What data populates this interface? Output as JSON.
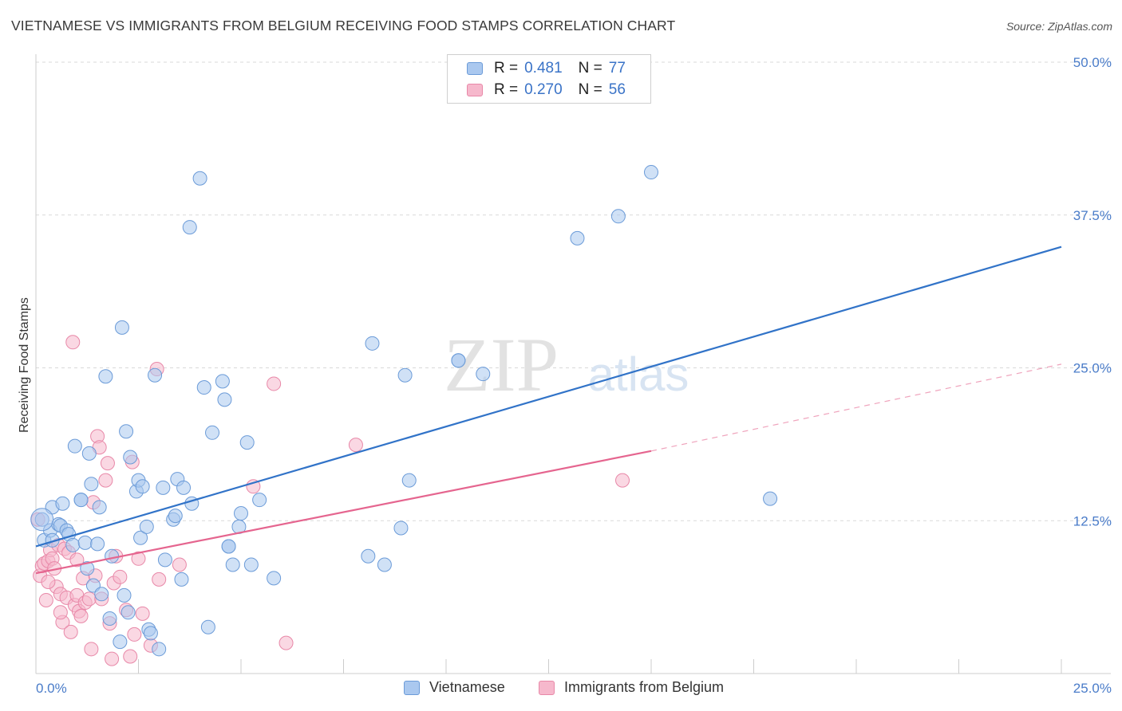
{
  "title": "VIETNAMESE VS IMMIGRANTS FROM BELGIUM RECEIVING FOOD STAMPS CORRELATION CHART",
  "source": "Source: ZipAtlas.com",
  "watermark": {
    "zip": "ZIP",
    "atlas": "atlas"
  },
  "legend": {
    "rows": [
      {
        "r_label": "R =",
        "r_value": "0.481",
        "n_label": "N =",
        "n_value": "77"
      },
      {
        "r_label": "R =",
        "r_value": "0.270",
        "n_label": "N =",
        "n_value": "56"
      }
    ]
  },
  "bottom_legend": [
    "Vietnamese",
    "Immigrants from Belgium"
  ],
  "colors": {
    "blue_fill": "#aac8ef",
    "blue_stroke": "#6b9bd8",
    "blue_line": "#3173c8",
    "pink_fill": "#f6b8cc",
    "pink_stroke": "#e888a8",
    "pink_line": "#e5658f",
    "axis_text": "#4a7cc9",
    "grid": "#d9d9d9"
  },
  "chart_data": {
    "type": "scatter",
    "title": "VIETNAMESE VS IMMIGRANTS FROM BELGIUM RECEIVING FOOD STAMPS CORRELATION CHART",
    "xlabel": "",
    "ylabel": "Receiving Food Stamps",
    "x_tick_labels": [
      "0.0%",
      "25.0%"
    ],
    "y_tick_labels": [
      "12.5%",
      "25.0%",
      "37.5%",
      "50.0%"
    ],
    "xlim": [
      0,
      25
    ],
    "ylim": [
      0,
      50
    ],
    "grid": true,
    "legend_position": "top-center",
    "series": [
      {
        "name": "Vietnamese",
        "r": 0.481,
        "n": 77,
        "trend": {
          "x": [
            0,
            25
          ],
          "y": [
            10.4,
            34.9
          ]
        },
        "points": [
          [
            0.15,
            12.6
          ],
          [
            0.2,
            10.9
          ],
          [
            0.35,
            11.7
          ],
          [
            0.4,
            13.6
          ],
          [
            0.55,
            12.2
          ],
          [
            0.6,
            12.1
          ],
          [
            0.65,
            13.9
          ],
          [
            0.75,
            11.7
          ],
          [
            0.8,
            11.4
          ],
          [
            0.9,
            10.5
          ],
          [
            0.95,
            18.6
          ],
          [
            1.1,
            14.2
          ],
          [
            1.2,
            10.7
          ],
          [
            1.25,
            8.6
          ],
          [
            1.3,
            18.0
          ],
          [
            1.35,
            15.5
          ],
          [
            1.4,
            7.2
          ],
          [
            1.5,
            10.6
          ],
          [
            1.55,
            13.6
          ],
          [
            1.6,
            6.5
          ],
          [
            1.7,
            24.3
          ],
          [
            1.8,
            4.5
          ],
          [
            1.85,
            9.6
          ],
          [
            2.05,
            2.6
          ],
          [
            2.1,
            28.3
          ],
          [
            2.15,
            6.4
          ],
          [
            2.2,
            19.8
          ],
          [
            2.25,
            5.0
          ],
          [
            2.3,
            17.7
          ],
          [
            2.45,
            14.9
          ],
          [
            2.5,
            15.8
          ],
          [
            2.55,
            11.1
          ],
          [
            2.6,
            15.3
          ],
          [
            2.7,
            12.0
          ],
          [
            2.75,
            3.6
          ],
          [
            2.8,
            3.3
          ],
          [
            2.9,
            24.4
          ],
          [
            3.0,
            2.0
          ],
          [
            3.1,
            15.2
          ],
          [
            3.15,
            9.3
          ],
          [
            3.35,
            12.6
          ],
          [
            3.4,
            12.9
          ],
          [
            3.45,
            15.9
          ],
          [
            3.55,
            7.7
          ],
          [
            3.6,
            15.2
          ],
          [
            3.75,
            36.5
          ],
          [
            3.8,
            13.9
          ],
          [
            4.0,
            40.5
          ],
          [
            4.1,
            23.4
          ],
          [
            4.2,
            3.8
          ],
          [
            4.3,
            19.7
          ],
          [
            4.55,
            23.9
          ],
          [
            4.6,
            22.4
          ],
          [
            4.7,
            10.4
          ],
          [
            4.8,
            8.9
          ],
          [
            4.95,
            12.0
          ],
          [
            5.0,
            13.1
          ],
          [
            5.15,
            18.9
          ],
          [
            5.25,
            8.9
          ],
          [
            5.45,
            14.2
          ],
          [
            5.8,
            7.8
          ],
          [
            8.1,
            9.6
          ],
          [
            8.2,
            27.0
          ],
          [
            8.5,
            8.9
          ],
          [
            8.9,
            11.9
          ],
          [
            9.0,
            24.4
          ],
          [
            9.1,
            15.8
          ],
          [
            10.3,
            25.6
          ],
          [
            10.3,
            25.6
          ],
          [
            10.9,
            24.5
          ],
          [
            13.2,
            35.6
          ],
          [
            14.2,
            37.4
          ],
          [
            15.0,
            41.0
          ],
          [
            17.9,
            14.3
          ],
          [
            4.7,
            10.4
          ],
          [
            1.1,
            14.2
          ],
          [
            0.4,
            10.9
          ]
        ]
      },
      {
        "name": "Immigrants from Belgium",
        "r": 0.27,
        "n": 56,
        "trend": {
          "x": [
            0,
            15
          ],
          "y": [
            8.2,
            18.2
          ]
        },
        "trend_dashed": {
          "x": [
            15,
            25
          ],
          "y": [
            18.2,
            25.3
          ]
        },
        "points": [
          [
            0.05,
            12.6
          ],
          [
            0.1,
            8.0
          ],
          [
            0.15,
            8.8
          ],
          [
            0.2,
            9.0
          ],
          [
            0.25,
            6.0
          ],
          [
            0.3,
            9.2
          ],
          [
            0.35,
            10.1
          ],
          [
            0.4,
            9.4
          ],
          [
            0.45,
            8.6
          ],
          [
            0.5,
            7.1
          ],
          [
            0.55,
            10.5
          ],
          [
            0.6,
            6.5
          ],
          [
            0.65,
            4.2
          ],
          [
            0.7,
            10.2
          ],
          [
            0.75,
            6.2
          ],
          [
            0.8,
            9.9
          ],
          [
            0.85,
            3.4
          ],
          [
            0.9,
            27.1
          ],
          [
            0.95,
            5.6
          ],
          [
            1.0,
            6.4
          ],
          [
            1.05,
            5.1
          ],
          [
            1.1,
            4.7
          ],
          [
            1.15,
            7.8
          ],
          [
            1.2,
            5.8
          ],
          [
            1.3,
            6.1
          ],
          [
            1.35,
            2.0
          ],
          [
            1.4,
            14.0
          ],
          [
            1.45,
            8.0
          ],
          [
            1.5,
            19.4
          ],
          [
            1.55,
            18.5
          ],
          [
            1.6,
            6.1
          ],
          [
            1.7,
            15.8
          ],
          [
            1.75,
            17.2
          ],
          [
            1.8,
            4.1
          ],
          [
            1.85,
            1.2
          ],
          [
            1.9,
            7.4
          ],
          [
            1.95,
            9.6
          ],
          [
            2.05,
            7.9
          ],
          [
            2.2,
            5.2
          ],
          [
            2.3,
            1.4
          ],
          [
            2.35,
            17.3
          ],
          [
            2.4,
            3.2
          ],
          [
            2.5,
            9.4
          ],
          [
            2.6,
            4.9
          ],
          [
            2.8,
            2.3
          ],
          [
            2.95,
            24.9
          ],
          [
            3.0,
            7.7
          ],
          [
            3.5,
            8.9
          ],
          [
            5.3,
            15.3
          ],
          [
            5.8,
            23.7
          ],
          [
            6.1,
            2.5
          ],
          [
            7.8,
            18.7
          ],
          [
            14.3,
            15.8
          ],
          [
            0.3,
            7.5
          ],
          [
            0.6,
            5.0
          ],
          [
            1.0,
            9.3
          ]
        ]
      }
    ]
  }
}
